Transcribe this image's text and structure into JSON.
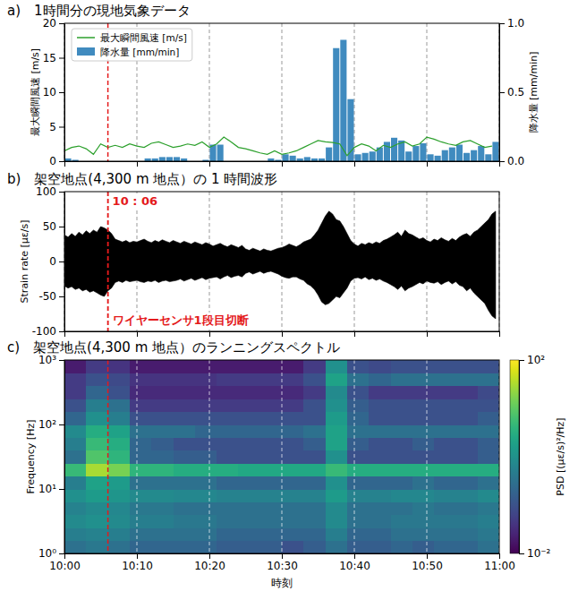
{
  "chart_data": [
    {
      "type": "bar",
      "title": "a)　1時間分の現地気象データ",
      "x": [
        0,
        1,
        2,
        3,
        4,
        5,
        6,
        7,
        8,
        9,
        10,
        11,
        12,
        13,
        14,
        15,
        16,
        17,
        18,
        19,
        20,
        21,
        22,
        23,
        24,
        25,
        26,
        27,
        28,
        29,
        30,
        31,
        32,
        33,
        34,
        35,
        36,
        37,
        38,
        39,
        40,
        41,
        42,
        43,
        44,
        45,
        46,
        47,
        48,
        49,
        50,
        51,
        52,
        53,
        54,
        55,
        56,
        57,
        58,
        59
      ],
      "xlim": [
        0,
        60
      ],
      "xticks": [
        0,
        10,
        20,
        30,
        40,
        50,
        60
      ],
      "ylim": [
        0,
        20
      ],
      "yticks": [
        0,
        5,
        10,
        15,
        20
      ],
      "y_label": "最大瞬間風速 [m/s]",
      "y2lim": [
        0,
        1
      ],
      "y2ticks": [
        {
          "value": 0,
          "label": "0.0"
        },
        {
          "value": 0.5,
          "label": "0.5"
        },
        {
          "value": 1,
          "label": "1.0"
        }
      ],
      "y2_label": "降水量 [mm/min]",
      "grid": true,
      "legend": "upper left",
      "tick_labels": "y",
      "series": [
        {
          "name": "最大瞬間風速 [m/s]",
          "type": "line",
          "color": "#2ca02c",
          "values": [
            1.5,
            2,
            2.2,
            1.8,
            1,
            2.5,
            2,
            2.3,
            2,
            2.5,
            2.2,
            2,
            2.6,
            2.8,
            2.4,
            2,
            2.2,
            2.5,
            2.3,
            2.8,
            2,
            2.5,
            3.5,
            2.8,
            2,
            1.8,
            1.5,
            1.2,
            1,
            1.5,
            1,
            1.2,
            1.5,
            2,
            2.5,
            3,
            2.8,
            2.7,
            2.5,
            0.8,
            2,
            2.5,
            2.2,
            1.5,
            2.3,
            2,
            2.5,
            2.8,
            2.2,
            2.5,
            3.5,
            3.2,
            2.8,
            2.5,
            2.3,
            2.8,
            3,
            2.5,
            2,
            2.2
          ]
        },
        {
          "name": "降水量 [mm/min]",
          "type": "bar",
          "color": "#1f77b4",
          "axis": "y2",
          "values": [
            0.02,
            0.01,
            0,
            0,
            0,
            0,
            0,
            0,
            0,
            0,
            0,
            0.02,
            0.02,
            0.03,
            0.03,
            0.03,
            0.02,
            0,
            0,
            0.01,
            0.12,
            0.12,
            0,
            0,
            0,
            0,
            0,
            0,
            0.02,
            0.01,
            0.05,
            0.04,
            0.02,
            0.03,
            0.02,
            0.02,
            0.1,
            0.82,
            0.88,
            0.45,
            0.05,
            0.06,
            0.07,
            0.1,
            0.14,
            0.17,
            0.15,
            0.07,
            0.11,
            0.13,
            0.05,
            0.04,
            0.08,
            0.1,
            0.12,
            0.06,
            0.08,
            0.11,
            0.05,
            0.14
          ]
        }
      ],
      "annotations": [
        {
          "x": 6
        }
      ]
    },
    {
      "type": "area",
      "title": "b)　架空地点(4,300 m 地点）の 1 時間波形",
      "x": [
        0,
        0.5,
        1,
        1.5,
        2,
        2.5,
        3,
        3.5,
        4,
        4.5,
        5,
        5.5,
        6,
        6.5,
        7,
        7.5,
        8,
        8.5,
        9,
        9.5,
        10,
        10.5,
        11,
        11.5,
        12,
        12.5,
        13,
        13.5,
        14,
        14.5,
        15,
        15.5,
        16,
        16.5,
        17,
        17.5,
        18,
        18.5,
        19,
        19.5,
        20,
        20.5,
        21,
        21.5,
        22,
        22.5,
        23,
        23.5,
        24,
        24.5,
        25,
        25.5,
        26,
        26.5,
        27,
        27.5,
        28,
        28.5,
        29,
        29.5,
        30,
        30.5,
        31,
        31.5,
        32,
        32.5,
        33,
        33.5,
        34,
        34.5,
        35,
        35.5,
        36,
        36.5,
        37,
        37.5,
        38,
        38.5,
        39,
        39.5,
        40,
        40.5,
        41,
        41.5,
        42,
        42.5,
        43,
        43.5,
        44,
        44.5,
        45,
        45.5,
        46,
        46.5,
        47,
        47.5,
        48,
        48.5,
        49,
        49.5,
        50,
        50.5,
        51,
        51.5,
        52,
        52.5,
        53,
        53.5,
        54,
        54.5,
        55,
        55.5,
        56,
        56.5,
        57,
        57.5,
        58,
        58.5,
        59,
        59.5
      ],
      "xlim": [
        0,
        60
      ],
      "xticks": [
        0,
        10,
        20,
        30,
        40,
        50,
        60
      ],
      "ylim": [
        -100,
        100
      ],
      "yticks": [
        -100,
        -50,
        0,
        50,
        100
      ],
      "y_label": "Strain rate [με/s]",
      "grid": true,
      "tick_labels": "y",
      "series": [
        {
          "color": "#000000",
          "values": [
            38,
            35,
            40,
            36,
            42,
            38,
            44,
            40,
            45,
            42,
            50,
            48,
            45,
            40,
            32,
            30,
            28,
            30,
            27,
            29,
            28,
            30,
            32,
            29,
            27,
            30,
            28,
            31,
            29,
            27,
            30,
            28,
            26,
            29,
            27,
            25,
            28,
            26,
            24,
            27,
            25,
            22,
            24,
            26,
            23,
            21,
            24,
            22,
            20,
            23,
            18,
            16,
            19,
            17,
            15,
            18,
            16,
            15,
            17,
            19,
            20,
            22,
            25,
            23,
            21,
            24,
            28,
            30,
            32,
            38,
            45,
            55,
            65,
            72,
            68,
            60,
            58,
            50,
            40,
            30,
            25,
            22,
            26,
            24,
            27,
            25,
            28,
            26,
            30,
            32,
            35,
            38,
            42,
            36,
            45,
            40,
            38,
            35,
            32,
            34,
            30,
            28,
            32,
            30,
            34,
            31,
            29,
            33,
            30,
            35,
            38,
            40,
            36,
            42,
            45,
            50,
            55,
            60,
            68,
            72
          ]
        },
        {
          "color": "#000000",
          "values": [
            -35,
            -38,
            -36,
            -40,
            -38,
            -42,
            -40,
            -44,
            -42,
            -45,
            -48,
            -50,
            -42,
            -38,
            -30,
            -28,
            -30,
            -27,
            -29,
            -28,
            -27,
            -29,
            -30,
            -28,
            -29,
            -27,
            -30,
            -28,
            -27,
            -29,
            -28,
            -27,
            -25,
            -28,
            -26,
            -24,
            -27,
            -25,
            -23,
            -26,
            -24,
            -23,
            -22,
            -25,
            -22,
            -20,
            -23,
            -21,
            -20,
            -22,
            -17,
            -15,
            -18,
            -16,
            -14,
            -17,
            -15,
            -14,
            -16,
            -18,
            -21,
            -23,
            -24,
            -22,
            -22,
            -25,
            -27,
            -32,
            -35,
            -40,
            -48,
            -58,
            -62,
            -60,
            -55,
            -50,
            -52,
            -45,
            -38,
            -28,
            -24,
            -23,
            -25,
            -22,
            -26,
            -24,
            -27,
            -25,
            -28,
            -30,
            -33,
            -36,
            -40,
            -35,
            -42,
            -38,
            -36,
            -33,
            -30,
            -32,
            -28,
            -30,
            -31,
            -29,
            -33,
            -30,
            -28,
            -32,
            -29,
            -34,
            -36,
            -42,
            -38,
            -45,
            -50,
            -55,
            -60,
            -70,
            -78,
            -82
          ]
        }
      ],
      "annotations": [
        {
          "x": 6,
          "text": "10 : 06"
        },
        {
          "x": 6,
          "text": "ワイヤーセンサ1段目切断"
        }
      ]
    },
    {
      "type": "heatmap",
      "title": "c)　架空地点(4,300 m 地点）のランニングスペクトル",
      "x_bins": [
        0,
        3,
        6,
        9,
        12,
        15,
        18,
        21,
        24,
        27,
        30,
        33,
        36,
        39,
        42,
        45,
        48,
        51,
        54,
        57,
        60
      ],
      "y_bins": [
        1,
        1.585,
        2.512,
        3.981,
        6.31,
        10,
        15.85,
        25.12,
        39.81,
        63.1,
        100,
        158.5,
        251.2,
        398.1,
        631,
        1000
      ],
      "cells": [
        [
          0.3,
          0.4,
          0.3,
          0.2,
          0.2,
          0.2,
          0.2,
          0.15,
          0.15,
          0.15,
          0.1,
          0.15,
          0.3,
          0.15,
          0.15,
          0.2,
          0.15,
          0.2,
          0.2,
          0.3
        ],
        [
          0.5,
          0.6,
          0.5,
          0.3,
          0.3,
          0.3,
          0.3,
          0.2,
          0.2,
          0.2,
          0.2,
          0.2,
          0.5,
          0.2,
          0.2,
          0.3,
          0.3,
          0.3,
          0.3,
          0.4
        ],
        [
          0.8,
          1,
          0.8,
          0.5,
          0.5,
          0.4,
          0.4,
          0.3,
          0.3,
          0.3,
          0.3,
          0.3,
          0.8,
          0.3,
          0.3,
          0.4,
          0.4,
          0.4,
          0.4,
          0.5
        ],
        [
          0.6,
          0.8,
          0.7,
          0.4,
          0.4,
          0.3,
          0.3,
          0.3,
          0.3,
          0.3,
          0.3,
          0.3,
          0.8,
          0.3,
          0.3,
          0.3,
          0.4,
          0.3,
          0.3,
          0.4
        ],
        [
          1,
          1.5,
          1.2,
          0.8,
          0.8,
          0.7,
          0.7,
          0.6,
          0.6,
          0.6,
          0.6,
          0.6,
          1.5,
          0.6,
          0.6,
          0.7,
          0.7,
          0.6,
          0.6,
          0.8
        ],
        [
          0.5,
          2,
          1.5,
          0.3,
          0.3,
          0.3,
          0.3,
          0.2,
          0.2,
          0.2,
          0.2,
          0.2,
          1,
          0.2,
          0.2,
          0.2,
          0.3,
          0.2,
          0.2,
          0.3
        ],
        [
          5,
          30,
          15,
          4,
          4,
          3,
          3,
          3,
          2.5,
          2.5,
          2.5,
          2.5,
          5,
          3,
          3,
          3,
          3,
          3,
          3,
          3
        ],
        [
          0.3,
          8,
          4,
          0.2,
          0.2,
          0.15,
          0.15,
          0.1,
          0.1,
          0.1,
          0.1,
          0.1,
          1,
          0.1,
          0.1,
          0.1,
          0.1,
          0.1,
          0.1,
          0.15
        ],
        [
          0.5,
          5,
          3,
          0.2,
          0.15,
          0.1,
          0.1,
          0.1,
          0.1,
          0.1,
          0.1,
          0.15,
          2,
          0.15,
          0.1,
          0.1,
          0.15,
          0.1,
          0.1,
          0.15
        ],
        [
          0.8,
          3,
          2,
          0.3,
          0.3,
          0.3,
          0.2,
          0.2,
          0.2,
          0.2,
          0.2,
          0.3,
          2,
          0.3,
          0.3,
          0.3,
          0.3,
          0.3,
          0.3,
          0.3
        ],
        [
          0.2,
          1,
          0.5,
          0.1,
          0.1,
          0.1,
          0.1,
          0.1,
          0.1,
          0.1,
          0.1,
          0.1,
          1.5,
          0.2,
          0.1,
          0.1,
          0.1,
          0.1,
          0.1,
          0.15
        ],
        [
          0.1,
          0.5,
          0.3,
          0.05,
          0.05,
          0.05,
          0.05,
          0.05,
          0.05,
          0.05,
          0.05,
          0.1,
          1,
          0.15,
          0.1,
          0.1,
          0.1,
          0.1,
          0.1,
          0.1
        ],
        [
          0.05,
          0.2,
          0.1,
          0.03,
          0.03,
          0.03,
          0.03,
          0.03,
          0.03,
          0.03,
          0.03,
          0.05,
          0.8,
          0.1,
          0.05,
          0.05,
          0.05,
          0.05,
          0.05,
          0.08
        ],
        [
          0.05,
          0.1,
          0.08,
          0.04,
          0.04,
          0.04,
          0.04,
          0.05,
          0.05,
          0.05,
          0.05,
          0.1,
          2,
          0.3,
          0.2,
          0.3,
          0.3,
          0.3,
          0.3,
          0.3
        ],
        [
          0.02,
          0.05,
          0.04,
          0.02,
          0.02,
          0.02,
          0.02,
          0.02,
          0.02,
          0.02,
          0.02,
          0.05,
          1,
          0.1,
          0.08,
          0.1,
          0.1,
          0.1,
          0.1,
          0.1
        ]
      ],
      "xlim": [
        0,
        60
      ],
      "xticks": [
        {
          "value": 0,
          "label": "10:00"
        },
        {
          "value": 10,
          "label": "10:10"
        },
        {
          "value": 20,
          "label": "10:20"
        },
        {
          "value": 30,
          "label": "10:30"
        },
        {
          "value": 40,
          "label": "10:40"
        },
        {
          "value": 50,
          "label": "10:50"
        },
        {
          "value": 60,
          "label": "11:00"
        }
      ],
      "x_label": "時刻",
      "ylim": [
        1,
        1000
      ],
      "yticks": [
        {
          "value": 1,
          "label": "10⁰"
        },
        {
          "value": 10,
          "label": "10¹"
        },
        {
          "value": 100,
          "label": "10²"
        },
        {
          "value": 1000,
          "label": "10³"
        }
      ],
      "y_label": "Frequency [Hz]",
      "log": "y",
      "grid": true,
      "colorbar": {
        "range": [
          0.01,
          100
        ],
        "ticks": [
          {
            "value": 0.01,
            "label": "10⁻²"
          },
          {
            "value": 100,
            "label": "10²"
          }
        ],
        "label": "PSD [(με/s)²/Hz]"
      },
      "annotations": [
        {
          "x": 6
        }
      ]
    }
  ]
}
